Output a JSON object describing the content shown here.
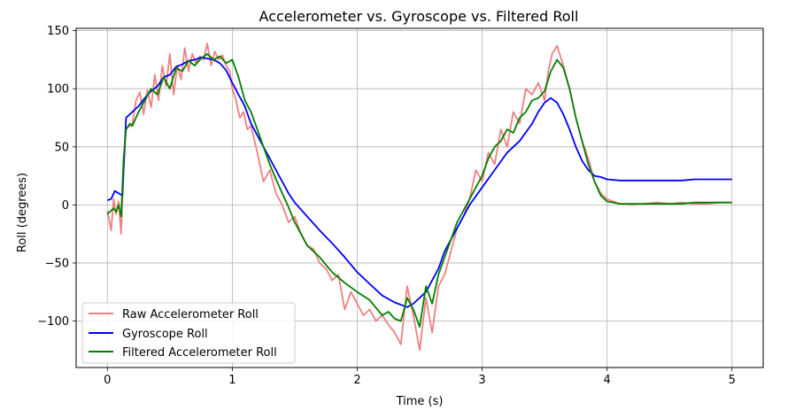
{
  "chart_data": {
    "type": "line",
    "title": "Accelerometer vs. Gyroscope vs. Filtered Roll",
    "xlabel": "Time (s)",
    "ylabel": "Roll (degrees)",
    "xlim": [
      -0.25,
      5.25
    ],
    "ylim": [
      -140,
      152
    ],
    "xticks": [
      0,
      1,
      2,
      3,
      4,
      5
    ],
    "yticks": [
      -100,
      -50,
      0,
      50,
      100,
      150
    ],
    "xtick_labels": [
      "0",
      "1",
      "2",
      "3",
      "4",
      "5"
    ],
    "ytick_labels": [
      "−100",
      "−50",
      "0",
      "50",
      "100",
      "150"
    ],
    "grid": true,
    "legend_position": "lower-left",
    "series": [
      {
        "name": "Raw Accelerometer Roll",
        "color": "#f08080",
        "x": [
          0,
          0.03,
          0.05,
          0.07,
          0.09,
          0.11,
          0.13,
          0.15,
          0.18,
          0.2,
          0.23,
          0.26,
          0.29,
          0.32,
          0.35,
          0.38,
          0.41,
          0.44,
          0.47,
          0.5,
          0.53,
          0.56,
          0.59,
          0.62,
          0.65,
          0.68,
          0.71,
          0.74,
          0.77,
          0.8,
          0.83,
          0.86,
          0.89,
          0.92,
          0.95,
          0.98,
          1.0,
          1.03,
          1.06,
          1.09,
          1.12,
          1.15,
          1.2,
          1.25,
          1.3,
          1.35,
          1.4,
          1.45,
          1.5,
          1.55,
          1.6,
          1.65,
          1.7,
          1.75,
          1.8,
          1.85,
          1.9,
          1.95,
          2.0,
          2.05,
          2.1,
          2.15,
          2.2,
          2.25,
          2.3,
          2.35,
          2.4,
          2.45,
          2.5,
          2.55,
          2.6,
          2.65,
          2.7,
          2.75,
          2.8,
          2.85,
          2.9,
          2.95,
          3.0,
          3.05,
          3.1,
          3.15,
          3.2,
          3.25,
          3.3,
          3.35,
          3.4,
          3.45,
          3.5,
          3.53,
          3.56,
          3.6,
          3.65,
          3.7,
          3.75,
          3.8,
          3.85,
          3.9,
          3.95,
          4.0,
          4.1,
          4.2,
          4.3,
          4.4,
          4.5,
          4.6,
          4.7,
          4.8,
          4.9,
          5.0
        ],
        "y": [
          -5,
          -22,
          5,
          -8,
          3,
          -25,
          30,
          66,
          68,
          70,
          90,
          97,
          78,
          99,
          84,
          112,
          90,
          120,
          102,
          130,
          95,
          120,
          108,
          135,
          115,
          130,
          122,
          128,
          125,
          139,
          120,
          132,
          125,
          129,
          120,
          115,
          100,
          90,
          75,
          80,
          65,
          68,
          45,
          20,
          30,
          10,
          0,
          -15,
          -10,
          -25,
          -35,
          -38,
          -50,
          -55,
          -65,
          -60,
          -90,
          -75,
          -85,
          -95,
          -90,
          -100,
          -95,
          -103,
          -110,
          -120,
          -70,
          -95,
          -125,
          -80,
          -110,
          -70,
          -60,
          -40,
          -20,
          -10,
          5,
          30,
          20,
          45,
          35,
          65,
          50,
          80,
          70,
          100,
          95,
          105,
          90,
          115,
          130,
          137,
          120,
          100,
          75,
          55,
          40,
          20,
          10,
          5,
          1,
          0,
          1,
          2,
          1,
          2,
          1,
          1,
          2,
          2
        ]
      },
      {
        "name": "Gyroscope Roll",
        "color": "#0000ff",
        "x": [
          0,
          0.03,
          0.06,
          0.09,
          0.12,
          0.15,
          0.2,
          0.25,
          0.3,
          0.35,
          0.4,
          0.45,
          0.5,
          0.55,
          0.6,
          0.65,
          0.7,
          0.75,
          0.8,
          0.85,
          0.9,
          0.95,
          1.0,
          1.05,
          1.1,
          1.15,
          1.2,
          1.25,
          1.3,
          1.35,
          1.4,
          1.45,
          1.5,
          1.6,
          1.7,
          1.8,
          1.9,
          2.0,
          2.1,
          2.2,
          2.3,
          2.4,
          2.45,
          2.5,
          2.55,
          2.6,
          2.65,
          2.7,
          2.8,
          2.9,
          3.0,
          3.1,
          3.2,
          3.3,
          3.4,
          3.45,
          3.5,
          3.55,
          3.6,
          3.65,
          3.7,
          3.75,
          3.8,
          3.85,
          3.9,
          3.95,
          4.0,
          4.1,
          4.2,
          4.3,
          4.4,
          4.5,
          4.6,
          4.7,
          4.8,
          4.9,
          5.0
        ],
        "y": [
          4,
          5,
          12,
          10,
          8,
          75,
          80,
          85,
          92,
          98,
          102,
          110,
          112,
          119,
          121,
          124,
          125,
          127,
          126,
          125,
          122,
          116,
          105,
          95,
          85,
          70,
          60,
          50,
          40,
          30,
          20,
          10,
          2,
          -10,
          -22,
          -33,
          -45,
          -58,
          -68,
          -78,
          -84,
          -88,
          -85,
          -80,
          -75,
          -65,
          -55,
          -40,
          -20,
          0,
          15,
          30,
          45,
          55,
          70,
          80,
          88,
          92,
          88,
          78,
          65,
          50,
          38,
          30,
          25,
          24,
          22,
          21,
          21,
          21,
          21,
          21,
          21,
          22,
          22,
          22,
          22
        ]
      },
      {
        "name": "Filtered Accelerometer Roll",
        "color": "#008000",
        "x": [
          0,
          0.03,
          0.05,
          0.07,
          0.09,
          0.11,
          0.13,
          0.15,
          0.18,
          0.2,
          0.25,
          0.3,
          0.35,
          0.4,
          0.45,
          0.5,
          0.55,
          0.6,
          0.65,
          0.7,
          0.75,
          0.8,
          0.85,
          0.9,
          0.95,
          1.0,
          1.05,
          1.1,
          1.15,
          1.2,
          1.25,
          1.3,
          1.35,
          1.4,
          1.45,
          1.5,
          1.55,
          1.6,
          1.7,
          1.8,
          1.9,
          2.0,
          2.1,
          2.2,
          2.25,
          2.3,
          2.35,
          2.4,
          2.45,
          2.5,
          2.55,
          2.6,
          2.65,
          2.7,
          2.75,
          2.8,
          2.9,
          3.0,
          3.05,
          3.1,
          3.15,
          3.2,
          3.25,
          3.3,
          3.35,
          3.4,
          3.45,
          3.5,
          3.55,
          3.6,
          3.65,
          3.7,
          3.75,
          3.8,
          3.85,
          3.9,
          3.95,
          4.0,
          4.1,
          4.2,
          4.3,
          4.4,
          4.5,
          4.6,
          4.7,
          4.8,
          4.9,
          5.0
        ],
        "y": [
          -8,
          -5,
          -3,
          -6,
          0,
          -10,
          40,
          65,
          70,
          68,
          80,
          90,
          100,
          95,
          110,
          100,
          118,
          115,
          124,
          120,
          126,
          130,
          125,
          128,
          122,
          125,
          110,
          90,
          80,
          65,
          50,
          35,
          22,
          10,
          -2,
          -15,
          -25,
          -35,
          -45,
          -58,
          -67,
          -75,
          -82,
          -95,
          -92,
          -98,
          -100,
          -80,
          -90,
          -105,
          -70,
          -85,
          -60,
          -45,
          -30,
          -15,
          5,
          25,
          40,
          50,
          55,
          65,
          62,
          75,
          80,
          90,
          92,
          98,
          115,
          125,
          118,
          100,
          75,
          55,
          35,
          20,
          8,
          3,
          1,
          1,
          1,
          1,
          1,
          1,
          2,
          2,
          2,
          2
        ]
      }
    ]
  }
}
